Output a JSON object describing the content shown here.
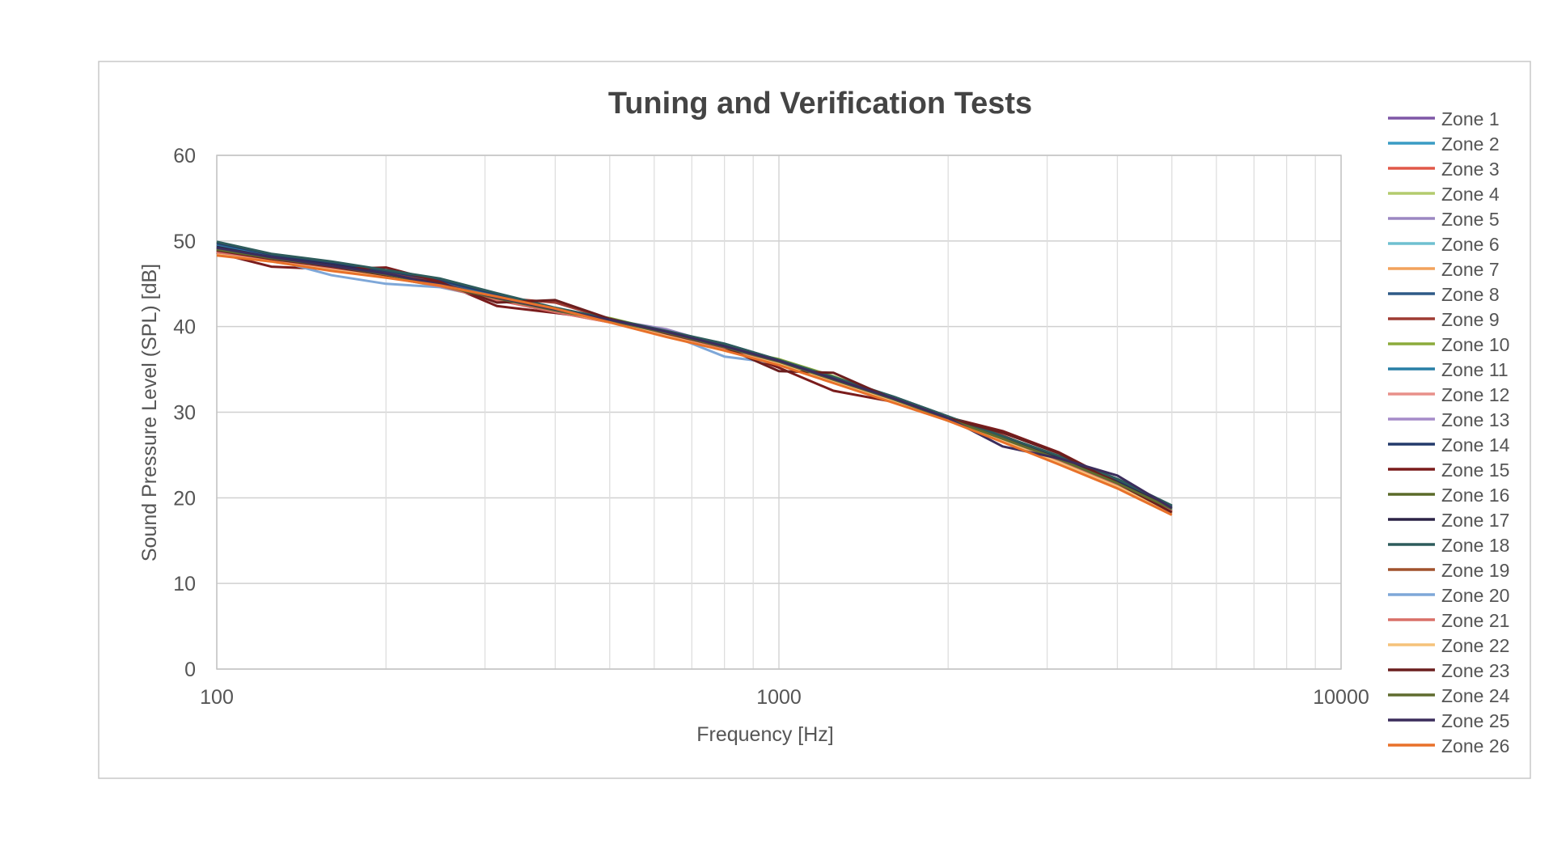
{
  "chart_data": {
    "type": "line",
    "title": "Tuning and Verification Tests",
    "xlabel": "Frequency [Hz]",
    "ylabel": "Sound Pressure Level (SPL) [dB]",
    "xscale": "log",
    "xlim": [
      100,
      10000
    ],
    "ylim": [
      0,
      60
    ],
    "x_ticks": [
      "100",
      "1000",
      "10000"
    ],
    "y_ticks": [
      "0",
      "10",
      "20",
      "30",
      "40",
      "50",
      "60"
    ],
    "grid": true,
    "legend_position": "right",
    "x": [
      100,
      125,
      160,
      200,
      250,
      315,
      400,
      500,
      630,
      800,
      1000,
      1250,
      1600,
      2000,
      2500,
      3150,
      4000,
      5000
    ],
    "series": [
      {
        "name": "Zone 1",
        "color": "#7e57a6",
        "values": [
          49.5,
          48.2,
          47.2,
          46.3,
          45.0,
          43.4,
          42.0,
          40.9,
          39.5,
          37.8,
          36.0,
          34.0,
          31.6,
          29.3,
          27.0,
          24.6,
          21.9,
          19.0
        ]
      },
      {
        "name": "Zone 2",
        "color": "#3a9cc4",
        "values": [
          49.2,
          48.0,
          47.0,
          46.0,
          44.9,
          43.3,
          41.9,
          40.7,
          39.3,
          37.6,
          35.9,
          33.9,
          31.5,
          29.2,
          26.9,
          24.5,
          21.7,
          18.7
        ]
      },
      {
        "name": "Zone 3",
        "color": "#e15849",
        "values": [
          48.7,
          47.8,
          46.8,
          45.8,
          44.7,
          43.1,
          41.7,
          40.5,
          39.1,
          37.4,
          35.7,
          33.7,
          31.3,
          29.1,
          26.8,
          24.3,
          21.5,
          18.4
        ]
      },
      {
        "name": "Zone 4",
        "color": "#b3cb6e",
        "values": [
          49.0,
          47.9,
          46.9,
          45.9,
          44.6,
          43.2,
          41.8,
          40.6,
          39.2,
          37.5,
          35.8,
          33.8,
          31.4,
          29.0,
          26.7,
          24.4,
          21.6,
          18.5
        ]
      },
      {
        "name": "Zone 5",
        "color": "#9b87c2",
        "values": [
          49.3,
          48.1,
          47.1,
          46.1,
          44.8,
          43.3,
          41.9,
          40.8,
          39.7,
          37.7,
          35.9,
          33.8,
          31.4,
          29.1,
          26.9,
          24.5,
          21.8,
          18.9
        ]
      },
      {
        "name": "Zone 6",
        "color": "#6fc0d0",
        "values": [
          49.1,
          48.0,
          47.0,
          45.8,
          44.7,
          43.2,
          41.8,
          40.7,
          39.2,
          37.2,
          35.8,
          33.7,
          31.3,
          29.1,
          26.8,
          24.4,
          21.6,
          18.6
        ]
      },
      {
        "name": "Zone 7",
        "color": "#f2a25c",
        "values": [
          48.5,
          47.7,
          46.7,
          45.9,
          44.9,
          43.5,
          42.1,
          40.6,
          39.0,
          37.3,
          35.6,
          33.6,
          31.3,
          29.2,
          26.7,
          24.2,
          21.4,
          18.3
        ]
      },
      {
        "name": "Zone 8",
        "color": "#2e5a87",
        "values": [
          49.6,
          48.3,
          47.3,
          46.4,
          45.3,
          43.6,
          42.0,
          40.8,
          39.4,
          38.0,
          36.1,
          34.1,
          31.7,
          29.4,
          27.0,
          24.7,
          22.0,
          18.9
        ]
      },
      {
        "name": "Zone 9",
        "color": "#9e3b33",
        "values": [
          48.9,
          47.7,
          46.9,
          46.3,
          45.0,
          43.4,
          42.8,
          40.9,
          39.3,
          37.6,
          35.7,
          33.5,
          31.4,
          29.3,
          27.3,
          24.6,
          21.7,
          18.4
        ]
      },
      {
        "name": "Zone 10",
        "color": "#8bab3b",
        "values": [
          49.0,
          48.1,
          47.2,
          46.2,
          44.8,
          43.3,
          41.8,
          41.0,
          39.4,
          37.5,
          36.2,
          34.2,
          31.6,
          29.0,
          26.8,
          24.8,
          21.7,
          18.6
        ]
      },
      {
        "name": "Zone 11",
        "color": "#287fa5",
        "values": [
          49.4,
          48.2,
          47.0,
          46.2,
          44.9,
          43.5,
          41.9,
          40.6,
          39.3,
          37.7,
          35.9,
          33.9,
          31.5,
          29.3,
          26.9,
          24.5,
          21.8,
          18.8
        ]
      },
      {
        "name": "Zone 12",
        "color": "#e8908a",
        "values": [
          48.8,
          47.9,
          46.8,
          45.9,
          44.8,
          43.2,
          41.8,
          40.6,
          39.2,
          37.5,
          35.8,
          33.7,
          31.4,
          29.2,
          26.8,
          24.3,
          21.5,
          18.5
        ]
      },
      {
        "name": "Zone 13",
        "color": "#a58bc9",
        "values": [
          49.2,
          48.0,
          47.0,
          46.0,
          44.8,
          43.3,
          41.9,
          40.7,
          39.5,
          37.6,
          35.9,
          33.8,
          31.5,
          29.2,
          26.9,
          24.5,
          21.7,
          18.7
        ]
      },
      {
        "name": "Zone 14",
        "color": "#233a6b",
        "values": [
          49.8,
          48.4,
          47.4,
          46.5,
          45.4,
          43.8,
          42.1,
          40.8,
          39.4,
          37.9,
          36.0,
          34.0,
          31.8,
          29.5,
          27.1,
          24.8,
          22.1,
          19.0
        ]
      },
      {
        "name": "Zone 15",
        "color": "#7a1c1c",
        "values": [
          48.6,
          47.0,
          46.7,
          46.9,
          45.2,
          42.4,
          41.6,
          40.8,
          39.0,
          37.5,
          35.2,
          32.5,
          31.2,
          29.4,
          27.8,
          25.3,
          21.8,
          18.2
        ]
      },
      {
        "name": "Zone 16",
        "color": "#5b6b2a",
        "values": [
          49.1,
          48.0,
          47.1,
          46.1,
          44.8,
          43.3,
          41.9,
          40.7,
          39.3,
          37.6,
          35.9,
          33.8,
          31.5,
          29.2,
          26.9,
          24.5,
          21.7,
          18.7
        ]
      },
      {
        "name": "Zone 17",
        "color": "#2c2346",
        "values": [
          49.3,
          48.1,
          47.2,
          46.2,
          44.9,
          43.4,
          42.0,
          40.8,
          39.4,
          37.7,
          36.0,
          33.9,
          31.6,
          29.3,
          27.0,
          24.6,
          21.8,
          18.8
        ]
      },
      {
        "name": "Zone 18",
        "color": "#2d5b5b",
        "values": [
          49.9,
          48.5,
          47.6,
          46.6,
          45.6,
          43.9,
          42.2,
          40.9,
          39.5,
          38.0,
          36.1,
          34.1,
          31.8,
          29.5,
          27.2,
          24.9,
          22.2,
          19.1
        ]
      },
      {
        "name": "Zone 19",
        "color": "#a0522d",
        "values": [
          48.8,
          47.8,
          46.8,
          45.9,
          44.7,
          43.2,
          41.8,
          40.6,
          39.2,
          37.5,
          35.8,
          33.7,
          31.4,
          29.1,
          26.8,
          24.4,
          21.6,
          18.5
        ]
      },
      {
        "name": "Zone 20",
        "color": "#7ea7d8",
        "values": [
          49.0,
          47.9,
          46.0,
          45.0,
          44.6,
          43.2,
          41.8,
          40.6,
          39.2,
          36.5,
          35.7,
          33.6,
          31.3,
          29.1,
          26.8,
          24.4,
          21.6,
          18.6
        ]
      },
      {
        "name": "Zone 21",
        "color": "#d97068",
        "values": [
          48.7,
          47.8,
          46.8,
          45.8,
          44.7,
          43.1,
          41.7,
          40.5,
          39.1,
          37.4,
          35.7,
          33.7,
          31.3,
          29.1,
          26.8,
          24.3,
          21.5,
          18.4
        ]
      },
      {
        "name": "Zone 22",
        "color": "#f5c27a",
        "values": [
          48.4,
          47.6,
          46.6,
          45.8,
          44.8,
          43.4,
          42.0,
          40.5,
          38.9,
          37.2,
          35.6,
          33.5,
          31.2,
          29.1,
          26.6,
          24.1,
          21.3,
          18.2
        ]
      },
      {
        "name": "Zone 23",
        "color": "#6b1e1e",
        "values": [
          48.9,
          47.9,
          47.0,
          46.0,
          45.1,
          42.8,
          43.1,
          40.9,
          39.2,
          37.6,
          34.8,
          34.6,
          31.5,
          29.3,
          27.6,
          25.2,
          21.7,
          18.3
        ]
      },
      {
        "name": "Zone 24",
        "color": "#5f6b2f",
        "values": [
          49.0,
          48.0,
          47.1,
          46.1,
          44.8,
          43.3,
          41.9,
          40.7,
          39.3,
          37.6,
          35.9,
          33.8,
          31.5,
          29.2,
          26.9,
          24.5,
          21.7,
          18.7
        ]
      },
      {
        "name": "Zone 25",
        "color": "#3b2d5c",
        "values": [
          49.2,
          48.1,
          47.1,
          46.2,
          44.9,
          43.4,
          42.0,
          40.8,
          39.4,
          37.7,
          36.0,
          33.9,
          31.6,
          29.3,
          26.0,
          24.6,
          22.6,
          18.8
        ]
      },
      {
        "name": "Zone 26",
        "color": "#e8712a",
        "values": [
          48.3,
          47.6,
          46.5,
          45.7,
          44.8,
          43.5,
          42.1,
          40.5,
          38.8,
          37.2,
          35.5,
          33.4,
          31.1,
          29.0,
          26.5,
          23.9,
          21.1,
          18.0
        ]
      }
    ]
  }
}
